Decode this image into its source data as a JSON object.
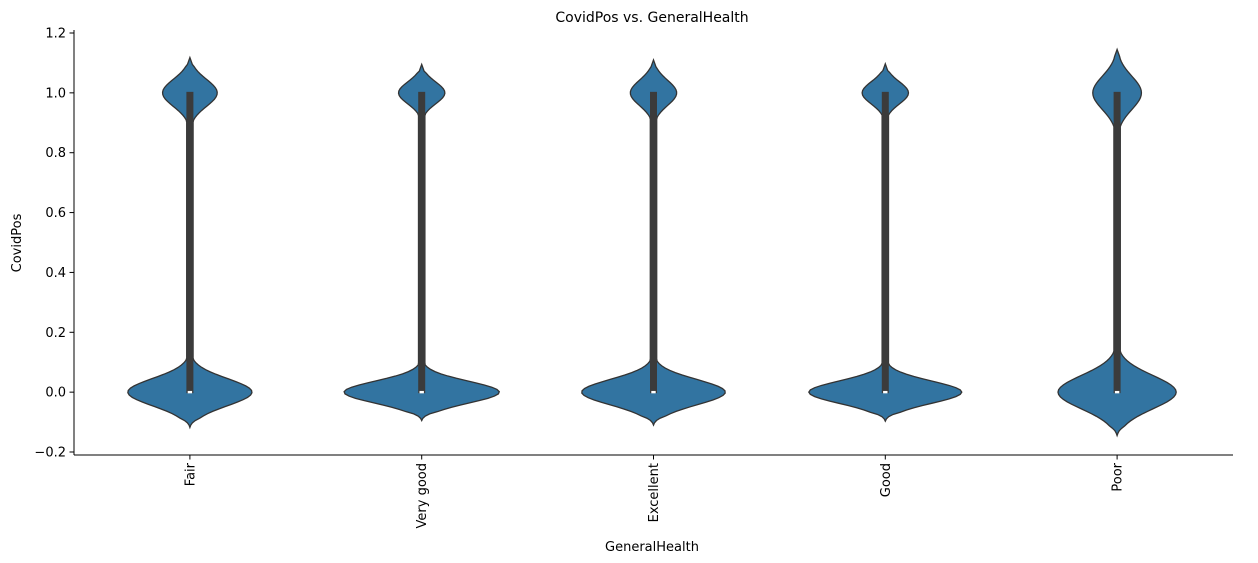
{
  "chart_data": {
    "type": "violin",
    "title": "CovidPos vs. GeneralHealth",
    "xlabel": "GeneralHealth",
    "ylabel": "CovidPos",
    "ylim": [
      -0.21,
      1.21
    ],
    "yticks": [
      -0.2,
      0.0,
      0.2,
      0.4,
      0.6,
      0.8,
      1.0,
      1.2
    ],
    "ytick_labels": [
      "−0.2",
      "0.0",
      "0.2",
      "0.4",
      "0.6",
      "0.8",
      "1.0",
      "1.2"
    ],
    "grid": false,
    "color": "#3274a1",
    "box_color": "#3b3b3b",
    "categories": [
      "Fair",
      "Very good",
      "Excellent",
      "Good",
      "Poor"
    ],
    "violins": [
      {
        "category": "Fair",
        "y_min": -0.118,
        "y_max": 1.118,
        "upper_peak_halfwidth": 0.118,
        "upper_waist": 0.885,
        "lower_peak_halfwidth": 0.268,
        "lower_waist": 0.13,
        "median": 0.0,
        "q1": 0.0,
        "q3": 1.0,
        "whisker_low": 0.0,
        "whisker_high": 1.0
      },
      {
        "category": "Very good",
        "y_min": -0.095,
        "y_max": 1.095,
        "upper_peak_halfwidth": 0.1,
        "upper_waist": 0.9,
        "lower_peak_halfwidth": 0.335,
        "lower_waist": 0.115,
        "median": 0.0,
        "q1": 0.0,
        "q3": 1.0,
        "whisker_low": 0.0,
        "whisker_high": 1.0
      },
      {
        "category": "Excellent",
        "y_min": -0.11,
        "y_max": 1.11,
        "upper_peak_halfwidth": 0.1,
        "upper_waist": 0.89,
        "lower_peak_halfwidth": 0.31,
        "lower_waist": 0.12,
        "median": 0.0,
        "q1": 0.0,
        "q3": 1.0,
        "whisker_low": 0.0,
        "whisker_high": 1.0
      },
      {
        "category": "Good",
        "y_min": -0.097,
        "y_max": 1.097,
        "upper_peak_halfwidth": 0.1,
        "upper_waist": 0.9,
        "lower_peak_halfwidth": 0.33,
        "lower_waist": 0.115,
        "median": 0.0,
        "q1": 0.0,
        "q3": 1.0,
        "whisker_low": 0.0,
        "whisker_high": 1.0
      },
      {
        "category": "Poor",
        "y_min": -0.145,
        "y_max": 1.145,
        "upper_peak_halfwidth": 0.105,
        "upper_waist": 0.855,
        "lower_peak_halfwidth": 0.255,
        "lower_waist": 0.16,
        "median": 0.0,
        "q1": 0.0,
        "q3": 1.0,
        "whisker_low": 0.0,
        "whisker_high": 1.0
      }
    ]
  }
}
